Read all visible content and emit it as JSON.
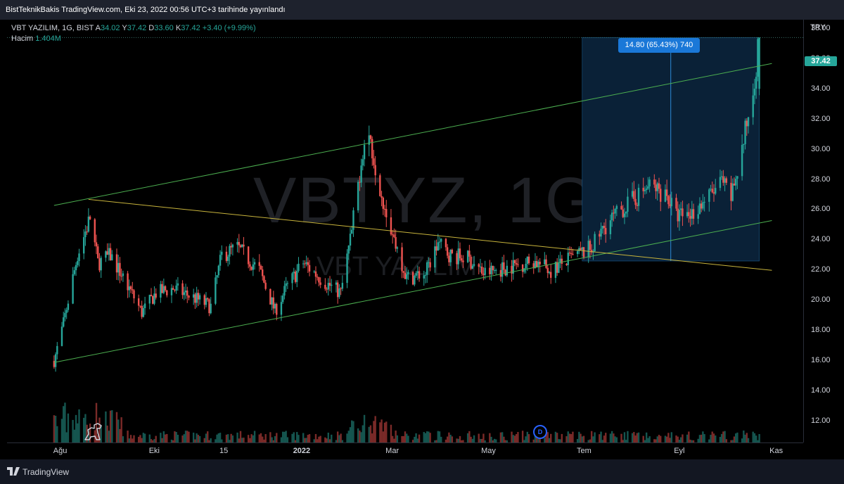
{
  "header": {
    "publish_text": "BistTeknikBakis TradingView.com, Eki 23, 2022 00:56 UTC+3 tarihinde yayınlandı"
  },
  "legend": {
    "symbol_line": "VBT YAZILIM, 1G, BIST",
    "open_label": "A",
    "open_value": "34.02",
    "high_label": "Y",
    "high_value": "37.42",
    "low_label": "D",
    "low_value": "33.60",
    "close_label": "K",
    "close_value": "37.42",
    "change_value": "+3.40 (+9.99%)",
    "volume_label": "Hacim",
    "volume_value": "1.404M"
  },
  "watermark": {
    "big": "VBTYZ, 1G",
    "small": "VBT YAZILIM"
  },
  "price_scale": {
    "currency": "TRY",
    "last_price": "37.42",
    "ticks": [
      "38.00",
      "36.00",
      "34.00",
      "32.00",
      "30.00",
      "28.00",
      "26.00",
      "24.00",
      "22.00",
      "20.00",
      "18.00",
      "16.00",
      "14.00",
      "12.00"
    ]
  },
  "measure": {
    "label": "14.80 (65.43%) 740"
  },
  "dividend_marker": "D",
  "time_scale": [
    {
      "label": "Ağu",
      "bold": false
    },
    {
      "label": "Eki",
      "bold": false
    },
    {
      "label": "15",
      "bold": false
    },
    {
      "label": "2022",
      "bold": true
    },
    {
      "label": "Mar",
      "bold": false
    },
    {
      "label": "May",
      "bold": false
    },
    {
      "label": "Tem",
      "bold": false
    },
    {
      "label": "Eyl",
      "bold": false
    },
    {
      "label": "Kas",
      "bold": false
    }
  ],
  "footer": {
    "brand": "TradingView"
  },
  "colors": {
    "up": "#26a69a",
    "down": "#ef5350",
    "channel": "#4caf50",
    "trendline": "#c8b43c",
    "measure": "#2962ff"
  },
  "chart_data": {
    "type": "candlestick",
    "symbol": "VBTYZ",
    "interval": "1G",
    "ylim": [
      10.6,
      38.6
    ],
    "price_path": [
      {
        "x": "2021-07-28",
        "y": 16.0
      },
      {
        "x": "2021-08-03",
        "y": 18.5
      },
      {
        "x": "2021-08-06",
        "y": 20.0
      },
      {
        "x": "2021-08-12",
        "y": 23.0
      },
      {
        "x": "2021-08-20",
        "y": 25.5
      },
      {
        "x": "2021-08-25",
        "y": 22.5
      },
      {
        "x": "2021-09-02",
        "y": 23.0
      },
      {
        "x": "2021-09-13",
        "y": 21.0
      },
      {
        "x": "2021-09-22",
        "y": 19.2
      },
      {
        "x": "2021-10-01",
        "y": 20.5
      },
      {
        "x": "2021-10-12",
        "y": 20.8
      },
      {
        "x": "2021-10-25",
        "y": 20.2
      },
      {
        "x": "2021-11-05",
        "y": 19.6
      },
      {
        "x": "2021-11-12",
        "y": 23.0
      },
      {
        "x": "2021-11-22",
        "y": 23.5
      },
      {
        "x": "2021-12-06",
        "y": 22.0
      },
      {
        "x": "2021-12-16",
        "y": 19.3
      },
      {
        "x": "2021-12-23",
        "y": 20.8
      },
      {
        "x": "2022-01-03",
        "y": 22.5
      },
      {
        "x": "2022-01-17",
        "y": 21.2
      },
      {
        "x": "2022-01-27",
        "y": 20.5
      },
      {
        "x": "2022-02-03",
        "y": 24.6
      },
      {
        "x": "2022-02-10",
        "y": 30.0
      },
      {
        "x": "2022-02-14",
        "y": 31.0
      },
      {
        "x": "2022-02-21",
        "y": 27.5
      },
      {
        "x": "2022-02-28",
        "y": 24.8
      },
      {
        "x": "2022-03-10",
        "y": 21.5
      },
      {
        "x": "2022-03-22",
        "y": 21.8
      },
      {
        "x": "2022-03-30",
        "y": 23.8
      },
      {
        "x": "2022-04-07",
        "y": 23.0
      },
      {
        "x": "2022-04-18",
        "y": 22.8
      },
      {
        "x": "2022-04-28",
        "y": 21.8
      },
      {
        "x": "2022-05-16",
        "y": 22.3
      },
      {
        "x": "2022-05-30",
        "y": 22.6
      },
      {
        "x": "2022-06-10",
        "y": 22.0
      },
      {
        "x": "2022-06-23",
        "y": 22.8
      },
      {
        "x": "2022-07-06",
        "y": 23.5
      },
      {
        "x": "2022-07-15",
        "y": 25.0
      },
      {
        "x": "2022-07-25",
        "y": 26.0
      },
      {
        "x": "2022-08-03",
        "y": 26.8
      },
      {
        "x": "2022-08-12",
        "y": 27.6
      },
      {
        "x": "2022-08-23",
        "y": 27.0
      },
      {
        "x": "2022-08-29",
        "y": 25.6
      },
      {
        "x": "2022-09-08",
        "y": 25.8
      },
      {
        "x": "2022-09-20",
        "y": 27.0
      },
      {
        "x": "2022-09-27",
        "y": 27.8
      },
      {
        "x": "2022-10-03",
        "y": 26.8
      },
      {
        "x": "2022-10-10",
        "y": 30.0
      },
      {
        "x": "2022-10-17",
        "y": 34.0
      },
      {
        "x": "2022-10-21",
        "y": 37.42
      }
    ],
    "last_bar": {
      "open": 34.02,
      "high": 37.42,
      "low": 33.6,
      "close": 37.42,
      "change": 3.4,
      "change_pct": 9.99,
      "volume": "1.404M"
    },
    "drawings": {
      "channel_upper": [
        {
          "x": "2021-07-28",
          "y": 26.3
        },
        {
          "x": "2022-10-29",
          "y": 35.7
        }
      ],
      "channel_lower": [
        {
          "x": "2021-07-28",
          "y": 15.9
        },
        {
          "x": "2022-10-29",
          "y": 25.3
        }
      ],
      "descending_trendline": [
        {
          "x": "2021-08-19",
          "y": 26.7
        },
        {
          "x": "2022-10-29",
          "y": 22.0
        }
      ],
      "measure_range": {
        "from_price": 22.62,
        "to_price": 37.42,
        "start": "2022-06-30",
        "end": "2022-10-21",
        "change": 14.8,
        "change_pct": 65.43,
        "bars": 740
      }
    }
  }
}
